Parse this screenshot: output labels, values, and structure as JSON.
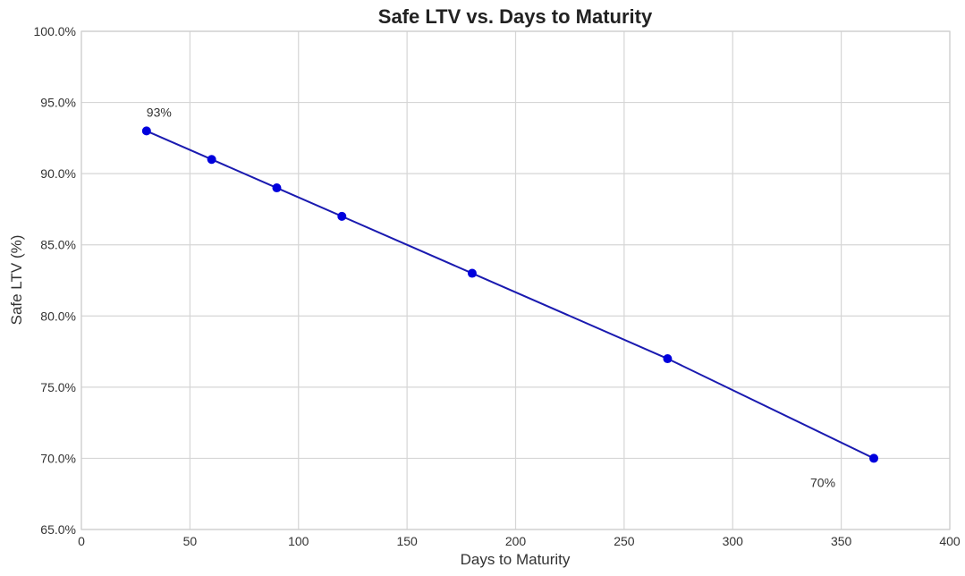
{
  "chart_data": {
    "type": "line",
    "title": "Safe LTV vs. Days to Maturity",
    "xlabel": "Days to Maturity",
    "ylabel": "Safe LTV (%)",
    "xlim": [
      0,
      400
    ],
    "ylim": [
      65,
      100
    ],
    "xticks": [
      0,
      50,
      100,
      150,
      200,
      250,
      300,
      350,
      400
    ],
    "xtick_labels": [
      "0",
      "50",
      "100",
      "150",
      "200",
      "250",
      "300",
      "350",
      "400"
    ],
    "yticks": [
      65,
      70,
      75,
      80,
      85,
      90,
      95,
      100
    ],
    "ytick_labels": [
      "65.0%",
      "70.0%",
      "75.0%",
      "80.0%",
      "85.0%",
      "90.0%",
      "95.0%",
      "100.0%"
    ],
    "grid": true,
    "x": [
      30,
      60,
      90,
      120,
      180,
      270,
      365
    ],
    "y": [
      93,
      91,
      89,
      87,
      83,
      77,
      70
    ],
    "line_color": "#1a1ab0",
    "marker_color": "#0000dd",
    "annotations": [
      {
        "text": "93%",
        "x": 30,
        "y": 93,
        "position": "above"
      },
      {
        "text": "70%",
        "x": 365,
        "y": 70,
        "position": "below-left"
      }
    ]
  }
}
